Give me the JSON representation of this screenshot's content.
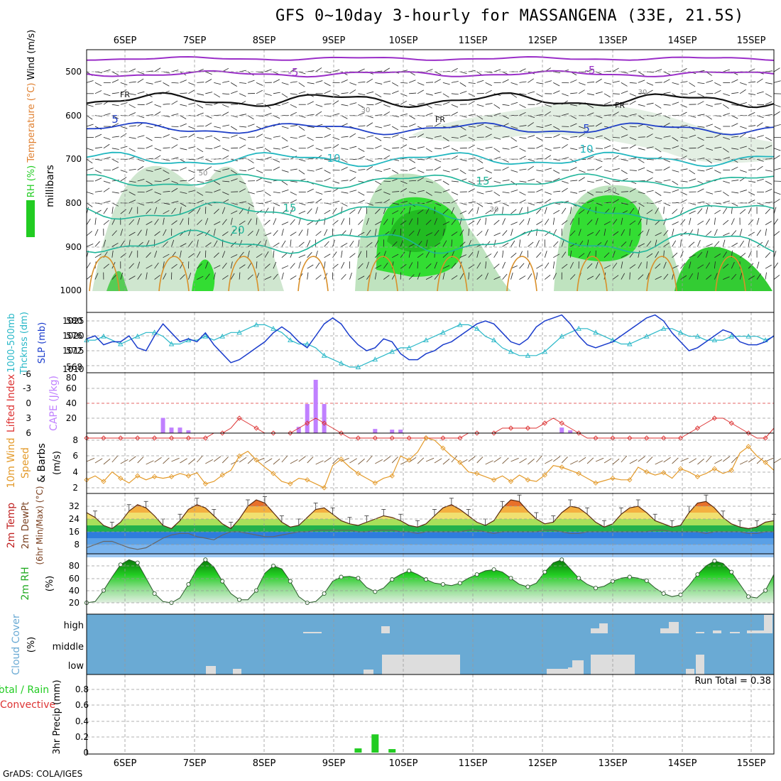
{
  "title": "GFS 0~10day 3-hourly for MASSANGENA (33E, 21.5S)",
  "credit": "GrADS: COLA/IGES",
  "colors": {
    "purple": "#9a2ec8",
    "blue": "#1f3fc8",
    "cyan": "#21b7c0",
    "teal": "#1fb59a",
    "orange": "#d9902a",
    "black": "#111111",
    "green": "#22cc22",
    "cape": "#c080ff",
    "li": "#dd3333",
    "slp": "#1a3ccc",
    "thk": "#2ab8c8",
    "wind": "#e39a2a",
    "barb": "#7a5a3a",
    "cloud": "#6aaad4",
    "cloudfill": "#dddddd"
  },
  "chart_data": [
    {
      "type": "heatmap",
      "panel": "upper-air",
      "left_labels": [
        "RH (%)",
        "Temperature (°C)",
        "Wind (m/s)"
      ],
      "ylabel": "millibars",
      "y_ticks": [
        "500",
        "600",
        "700",
        "800",
        "900",
        "1000"
      ],
      "days": [
        "6SEP",
        "7SEP",
        "8SEP",
        "9SEP",
        "10SEP",
        "11SEP",
        "12SEP",
        "13SEP",
        "14SEP",
        "15SEP"
      ],
      "contour_labels": [
        {
          "text": "-5",
          "color": "purple"
        },
        {
          "text": "-5",
          "color": "purple"
        },
        {
          "text": "FR",
          "color": "black"
        },
        {
          "text": "FR",
          "color": "black"
        },
        {
          "text": "FR",
          "color": "black"
        },
        {
          "text": "5",
          "color": "blue"
        },
        {
          "text": "5",
          "color": "blue"
        },
        {
          "text": "10",
          "color": "cyan"
        },
        {
          "text": "10",
          "color": "cyan"
        },
        {
          "text": "15",
          "color": "teal"
        },
        {
          "text": "15",
          "color": "teal"
        },
        {
          "text": "20",
          "color": "teal"
        },
        {
          "text": "30",
          "color": "grey"
        },
        {
          "text": "30",
          "color": "grey"
        },
        {
          "text": "30",
          "color": "grey"
        },
        {
          "text": "50",
          "color": "grey"
        },
        {
          "text": "50",
          "color": "grey"
        }
      ]
    },
    {
      "type": "line",
      "panel": "slp-thickness",
      "left_labels": [
        "1000-500mb",
        "Thcknss (dm)",
        "SLP (mb)"
      ],
      "left_ticks": [
        "580",
        "576",
        "572",
        "568"
      ],
      "right_ticks": [
        "1025",
        "1020",
        "1015",
        "1010"
      ],
      "series": [
        {
          "name": "SLP (mb)",
          "color": "slp",
          "values": [
            1019,
            1020,
            1017,
            1018,
            1018,
            1020,
            1016,
            1015,
            1020,
            1024,
            1021,
            1018,
            1019,
            1018,
            1021,
            1017,
            1014,
            1011,
            1012,
            1014,
            1016,
            1018,
            1021,
            1023,
            1021,
            1018,
            1016,
            1020,
            1024,
            1026,
            1024,
            1020,
            1017,
            1015,
            1016,
            1019,
            1018,
            1014,
            1012,
            1012,
            1014,
            1015,
            1017,
            1018,
            1020,
            1022,
            1024,
            1025,
            1024,
            1021,
            1018,
            1017,
            1019,
            1023,
            1025,
            1026,
            1027,
            1024,
            1020,
            1017,
            1016,
            1017,
            1018,
            1020,
            1022,
            1024,
            1026,
            1027,
            1025,
            1021,
            1018,
            1015,
            1016,
            1018,
            1020,
            1022,
            1021,
            1018,
            1017,
            1017,
            1018,
            1020
          ]
        },
        {
          "name": "Thickness (dm)",
          "color": "thk",
          "values": [
            575,
            575,
            576,
            575,
            574,
            575,
            576,
            577,
            577,
            576,
            574,
            574,
            575,
            575,
            576,
            575,
            576,
            577,
            577,
            578,
            579,
            579,
            578,
            577,
            575,
            574,
            574,
            573,
            571,
            570,
            569,
            568,
            568,
            569,
            570,
            571,
            572,
            573,
            573,
            574,
            575,
            576,
            577,
            578,
            579,
            579,
            578,
            576,
            575,
            573,
            572,
            571,
            571,
            571,
            572,
            574,
            576,
            577,
            578,
            578,
            577,
            576,
            575,
            574,
            574,
            575,
            576,
            577,
            578,
            578,
            577,
            576,
            576,
            575,
            575,
            575,
            576,
            576,
            576,
            576,
            575,
            576
          ]
        }
      ]
    },
    {
      "type": "bar",
      "panel": "cape-li",
      "left_labels": [
        "Lifted Index",
        "CAPE (J/kg)"
      ],
      "li_ticks": [
        "-6",
        "-3",
        "0",
        "3",
        "6"
      ],
      "cape_ticks": [
        "80",
        "60",
        "40",
        "20"
      ],
      "cape_values": [
        0,
        0,
        0,
        0,
        0,
        0,
        0,
        0,
        0,
        22,
        8,
        8,
        4,
        0,
        0,
        0,
        0,
        0,
        0,
        0,
        0,
        0,
        0,
        0,
        0,
        9,
        42,
        77,
        42,
        0,
        0,
        0,
        0,
        0,
        6,
        0,
        5,
        5,
        0,
        0,
        0,
        0,
        0,
        0,
        0,
        0,
        0,
        0,
        0,
        0,
        0,
        0,
        0,
        0,
        0,
        0,
        8,
        4,
        0,
        0,
        0,
        0,
        0,
        0,
        0,
        0,
        0,
        0,
        0,
        0,
        0,
        0,
        0,
        0,
        0,
        0,
        0,
        0,
        0,
        0,
        0,
        0
      ],
      "li_values": [
        7,
        7,
        7,
        7,
        7,
        7,
        7,
        7,
        7,
        7,
        7,
        7,
        7,
        7,
        7,
        6,
        6,
        5,
        3,
        4,
        5,
        6,
        6,
        6,
        6,
        5,
        4,
        3,
        4,
        5,
        6,
        7,
        7,
        7,
        7,
        7,
        7,
        7,
        7,
        7,
        7,
        7,
        7,
        7,
        7,
        6,
        6,
        6,
        6,
        5,
        5,
        5,
        5,
        5,
        4,
        3,
        4,
        5,
        6,
        7,
        7,
        7,
        7,
        7,
        7,
        7,
        7,
        7,
        7,
        7,
        7,
        6,
        5,
        4,
        3,
        3,
        4,
        5,
        6,
        7,
        7,
        5
      ]
    },
    {
      "type": "line",
      "panel": "wind10m",
      "left_labels": [
        "10m Wind",
        "Speed",
        "& Barbs",
        "(m/s)"
      ],
      "y_ticks": [
        "8",
        "6",
        "4",
        "2"
      ],
      "series": [
        {
          "name": "10m Wind Speed",
          "color": "wind",
          "values": [
            3.0,
            3.5,
            2.8,
            4.0,
            3.2,
            2.6,
            3.5,
            3.0,
            3.4,
            3.2,
            3.4,
            3.8,
            3.5,
            3.9,
            2.5,
            2.8,
            3.6,
            4.2,
            6.0,
            6.6,
            5.5,
            4.6,
            3.8,
            2.8,
            2.5,
            3.2,
            3.0,
            2.5,
            2.0,
            4.8,
            5.6,
            4.6,
            3.8,
            3.2,
            2.6,
            3.2,
            3.5,
            6.0,
            5.5,
            6.5,
            8.3,
            8.0,
            7.0,
            6.0,
            5.2,
            4.0,
            3.8,
            3.4,
            3.0,
            3.5,
            2.8,
            3.6,
            3.0,
            2.8,
            3.6,
            4.8,
            4.6,
            4.2,
            3.8,
            3.2,
            2.6,
            2.9,
            3.2,
            3.0,
            3.0,
            4.6,
            4.0,
            3.6,
            3.9,
            3.2,
            4.4,
            4.0,
            3.4,
            3.8,
            4.4,
            3.8,
            4.2,
            6.4,
            7.2,
            6.0,
            5.2,
            4.2
          ]
        }
      ]
    },
    {
      "type": "area",
      "panel": "temperature",
      "left_labels": [
        "2m Temp",
        "2m DewPt",
        "(6hr Min/Max) (°C)"
      ],
      "y_ticks": [
        "32",
        "24",
        "16",
        "8"
      ],
      "series": [
        {
          "name": "2m Temp",
          "values": [
            28,
            25,
            20,
            18,
            22,
            29,
            33,
            31,
            26,
            20,
            18,
            23,
            30,
            33,
            31,
            26,
            21,
            18,
            24,
            32,
            36,
            34,
            28,
            22,
            19,
            20,
            25,
            30,
            31,
            27,
            23,
            21,
            20,
            22,
            24,
            26,
            25,
            23,
            20,
            19,
            21,
            26,
            31,
            33,
            30,
            26,
            22,
            20,
            23,
            31,
            36,
            35,
            29,
            24,
            21,
            22,
            28,
            32,
            31,
            27,
            22,
            19,
            21,
            27,
            31,
            32,
            28,
            23,
            21,
            19,
            20,
            28,
            34,
            35,
            31,
            25,
            21,
            19,
            18,
            19,
            22,
            23
          ]
        },
        {
          "name": "2m DewPt",
          "values": [
            6,
            8,
            10,
            10,
            8,
            6,
            5,
            6,
            9,
            12,
            14,
            15,
            15,
            13,
            12,
            11,
            14,
            16,
            16,
            15,
            14,
            13,
            13,
            14,
            15,
            16,
            16,
            17,
            17,
            17,
            17,
            17,
            16,
            16,
            17,
            17,
            17,
            16,
            16,
            15,
            16,
            16,
            16,
            16,
            16,
            17,
            17,
            16,
            15,
            16,
            16,
            16,
            16,
            16,
            17,
            17,
            16,
            15,
            15,
            16,
            16,
            16,
            16,
            16,
            16,
            16,
            16,
            17,
            17,
            16,
            16,
            16,
            16,
            15,
            16,
            16,
            16,
            16,
            15,
            15,
            16,
            16
          ]
        }
      ]
    },
    {
      "type": "area",
      "panel": "rh2m",
      "left_labels": [
        "2m RH",
        "(%)"
      ],
      "y_ticks": [
        "80",
        "60",
        "40",
        "20"
      ],
      "series": [
        {
          "name": "2m RH",
          "values": [
            20,
            22,
            40,
            62,
            82,
            90,
            85,
            60,
            35,
            22,
            20,
            28,
            50,
            75,
            90,
            78,
            55,
            35,
            25,
            25,
            40,
            68,
            80,
            75,
            55,
            30,
            20,
            22,
            35,
            55,
            62,
            63,
            60,
            45,
            38,
            44,
            58,
            66,
            72,
            66,
            58,
            52,
            50,
            48,
            52,
            60,
            66,
            72,
            74,
            70,
            60,
            50,
            46,
            52,
            70,
            85,
            90,
            75,
            60,
            50,
            44,
            47,
            55,
            60,
            62,
            60,
            56,
            44,
            35,
            30,
            33,
            48,
            66,
            80,
            88,
            84,
            70,
            50,
            30,
            28,
            40,
            66
          ]
        }
      ]
    },
    {
      "type": "heatmap",
      "panel": "cloud",
      "left_labels": [
        "Cloud Cover",
        "(%)"
      ],
      "rows": [
        "high",
        "middle",
        "low"
      ]
    },
    {
      "type": "bar",
      "panel": "precip",
      "left_labels": [
        "Total / Rain",
        "Convective",
        "3hr Precip (mm)"
      ],
      "y_ticks": [
        "0.8",
        "0.6",
        "0.4",
        "0.2",
        "0"
      ],
      "run_total": "Run Total = 0.38",
      "values": [
        0,
        0,
        0,
        0,
        0,
        0,
        0,
        0,
        0,
        0,
        0,
        0,
        0,
        0,
        0,
        0,
        0,
        0,
        0,
        0,
        0,
        0,
        0,
        0,
        0,
        0,
        0,
        0,
        0,
        0,
        0,
        0,
        0.06,
        0,
        0.26,
        0,
        0.05,
        0,
        0,
        0,
        0,
        0,
        0,
        0,
        0,
        0,
        0,
        0,
        0,
        0,
        0,
        0,
        0,
        0,
        0,
        0,
        0,
        0,
        0,
        0,
        0,
        0,
        0,
        0,
        0,
        0,
        0,
        0,
        0,
        0,
        0,
        0,
        0,
        0,
        0,
        0,
        0,
        0,
        0,
        0,
        0,
        0
      ],
      "days": [
        "6SEP",
        "7SEP",
        "8SEP",
        "9SEP",
        "10SEP",
        "11SEP",
        "12SEP",
        "13SEP",
        "14SEP",
        "15SEP"
      ]
    }
  ]
}
